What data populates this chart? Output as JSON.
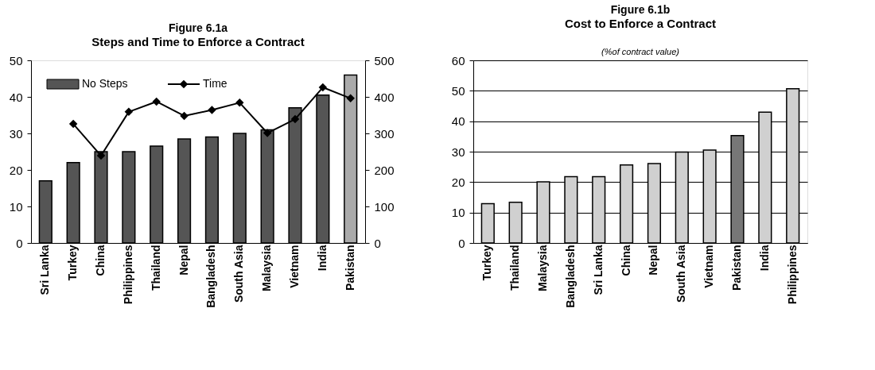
{
  "chart_data": [
    {
      "type": "bar",
      "title": "Figure 6.1a",
      "subtitle": "Steps and Time to Enforce a Contract",
      "categories": [
        "Sri Lanka",
        "Turkey",
        "China",
        "Philippines",
        "Thailand",
        "Nepal",
        "Bangladesh",
        "South Asia",
        "Malaysia",
        "Vietnam",
        "India",
        "Pakistan"
      ],
      "series": [
        {
          "name": "No Steps",
          "type": "bar",
          "color": "#555555",
          "colors": [
            "#555555",
            "#555555",
            "#555555",
            "#555555",
            "#555555",
            "#555555",
            "#555555",
            "#555555",
            "#555555",
            "#555555",
            "#555555",
            "#aaaaaa"
          ],
          "values": [
            17,
            22,
            25,
            25,
            26.5,
            28.5,
            29,
            30,
            31,
            37,
            40.5,
            46
          ]
        },
        {
          "name": "Time",
          "type": "line",
          "axis": "y2",
          "color": "#000000",
          "marker": "diamond",
          "values": [
            null,
            326,
            239,
            359,
            387,
            348,
            364,
            384,
            301,
            339,
            426,
            396
          ]
        }
      ],
      "ylim": [
        0,
        50
      ],
      "yticks": [
        0,
        10,
        20,
        30,
        40,
        50
      ],
      "y2lim": [
        0,
        500
      ],
      "y2ticks": [
        0,
        100,
        200,
        300,
        400,
        500
      ],
      "legend": "top left",
      "grid": false
    },
    {
      "type": "bar",
      "title": "Figure 6.1b",
      "subtitle": "Cost to Enforce a Contract",
      "annotations": [
        "(%of contract value)"
      ],
      "categories": [
        "Turkey",
        "Thailand",
        "Malaysia",
        "Bangladesh",
        "Sri Lanka",
        "China",
        "Nepal",
        "South Asia",
        "Vietnam",
        "Pakistan",
        "India",
        "Philippines"
      ],
      "values": [
        12.9,
        13.4,
        20.1,
        21.8,
        21.8,
        25.6,
        26.1,
        29.9,
        30.5,
        35.3,
        43.0,
        50.7
      ],
      "colors": [
        "#d0d0d0",
        "#d0d0d0",
        "#d0d0d0",
        "#d0d0d0",
        "#d0d0d0",
        "#d0d0d0",
        "#d0d0d0",
        "#d0d0d0",
        "#d0d0d0",
        "#777777",
        "#d0d0d0",
        "#d0d0d0"
      ],
      "ylim": [
        0,
        60
      ],
      "yticks": [
        0,
        10,
        20,
        30,
        40,
        50,
        60
      ],
      "grid": "y"
    }
  ]
}
